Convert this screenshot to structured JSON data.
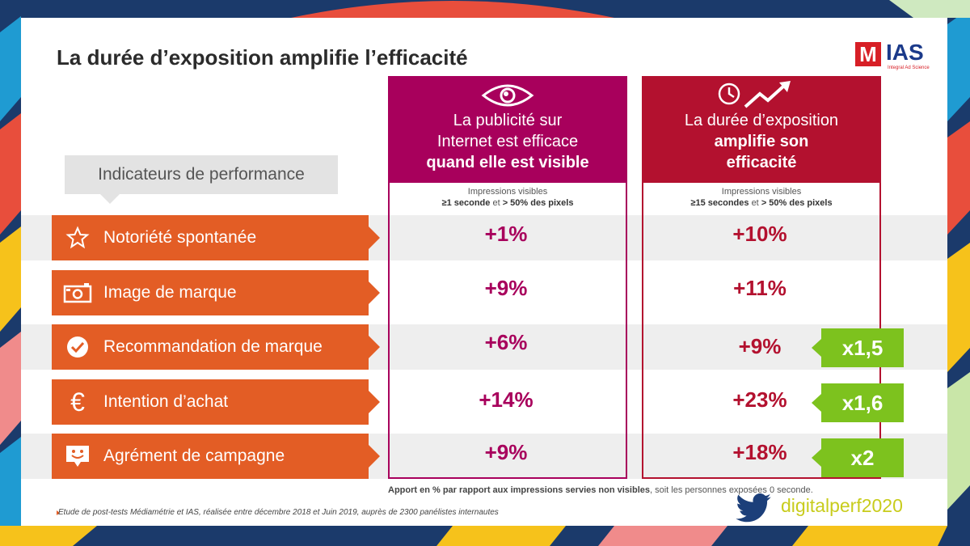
{
  "title": "La durée d’exposition amplifie l’efficacité",
  "logo": {
    "mark": "M",
    "brand": "IAS",
    "tagline": "Integral Ad Science"
  },
  "indicators_label": "Indicateurs de performance",
  "columns": [
    {
      "icon": "eye-icon",
      "head_line1": "La publicité sur",
      "head_line2": "Internet est efficace",
      "head_bold": "quand elle est visible",
      "sub_line1": "Impressions visibles",
      "sub_bold1": "≥1 seconde",
      "sub_mid": "et",
      "sub_bold2": "> 50% des pixels"
    },
    {
      "icon": "clock-trend-icon",
      "head_line1": "La durée d’exposition",
      "head_bold1": "amplifie son",
      "head_bold2": "efficacité",
      "sub_line1": "Impressions visibles",
      "sub_bold1": "≥15 secondes",
      "sub_mid": "et",
      "sub_bold2": "> 50% des pixels"
    }
  ],
  "rows": [
    {
      "label": "Notoriété spontanée",
      "icon": "star-icon",
      "visible": "+1%",
      "exposure": "+10%",
      "multiplier": ""
    },
    {
      "label": "Image de marque",
      "icon": "camera-icon",
      "visible": "+9%",
      "exposure": "+11%",
      "multiplier": ""
    },
    {
      "label": "Recommandation de marque",
      "icon": "check-circle-icon",
      "visible": "+6%",
      "exposure": "+9%",
      "multiplier": "x1,5"
    },
    {
      "label": "Intention d’achat",
      "icon": "euro-icon",
      "visible": "+14%",
      "exposure": "+23%",
      "multiplier": "x1,6"
    },
    {
      "label": "Agrément de campagne",
      "icon": "smiley-bubble-icon",
      "visible": "+9%",
      "exposure": "+18%",
      "multiplier": "x2"
    }
  ],
  "note": {
    "bold": "Apport en % par rapport aux impressions servies non visibles",
    "rest": ", soit les personnes  exposées  0 seconde."
  },
  "source": "Etude de post-tests Médiamétrie et IAS, réalisée entre décembre 2018 et Juin 2019, auprès de 2300 panélistes internautes",
  "hashtag": "digitalperf2020",
  "colors": {
    "magenta": "#a8005c",
    "crimson": "#b3112f",
    "orange": "#e35d25",
    "green": "#7dc21e",
    "twitter": "#1c3f7a"
  }
}
